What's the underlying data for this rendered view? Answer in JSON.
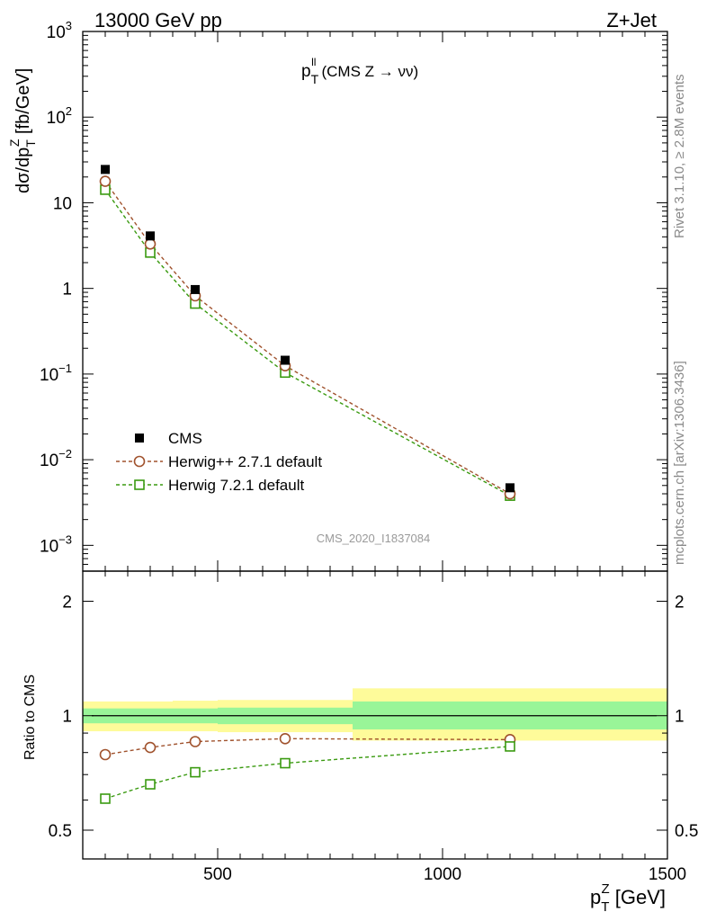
{
  "header": {
    "left": "13000 GeV pp",
    "right": "Z+Jet"
  },
  "side_labels": {
    "rivet": "Rivet 3.1.10, ≥ 2.8M events",
    "mcplots": "mcplots.cern.ch [arXiv:1306.3436]"
  },
  "colors": {
    "data": "#000000",
    "herwigpp": "#a0522d",
    "herwig7": "#3a9a10",
    "band_inner": "#99f598",
    "band_outer": "#fefb9a",
    "side_text": "#8a8a8a"
  },
  "chart_data": [
    {
      "type": "scatter",
      "panel": "main",
      "title_main": "p",
      "title_sup": "ll",
      "title_sub": "T",
      "title_rest": "(CMS Z → νν)",
      "ylabel": "dσ/dp_T^Z [fb/GeV]",
      "ylabel_parts": {
        "a": "dσ/dp",
        "sub": "T",
        "sup": "Z",
        "b": " [fb/GeV]"
      },
      "yscale": "log",
      "ylim": [
        0.0005,
        1000
      ],
      "xlim": [
        200,
        1500
      ],
      "yticks": [
        {
          "value": 1000,
          "base": "10",
          "exp": "3"
        },
        {
          "value": 100,
          "base": "10",
          "exp": "2"
        },
        {
          "value": 10,
          "base": "10",
          "exp": ""
        },
        {
          "value": 1,
          "base": "1",
          "exp": ""
        },
        {
          "value": 0.1,
          "base": "10",
          "exp": "−1"
        },
        {
          "value": 0.01,
          "base": "10",
          "exp": "−2"
        },
        {
          "value": 0.001,
          "base": "10",
          "exp": "−3"
        }
      ],
      "watermark": "CMS_2020_I1837084",
      "legend": {
        "placement": "bottom-left",
        "entries": [
          "CMS",
          "Herwig++ 2.7.1 default",
          "Herwig 7.2.1 default"
        ]
      },
      "series": [
        {
          "name": "CMS",
          "marker": "filled-square",
          "x": [
            250,
            350,
            450,
            650,
            1150
          ],
          "y": [
            24.5,
            4.1,
            0.97,
            0.145,
            0.0047
          ]
        },
        {
          "name": "Herwig++ 2.7.1 default",
          "marker": "open-circle",
          "x": [
            250,
            350,
            450,
            650,
            1150
          ],
          "y": [
            17.8,
            3.3,
            0.82,
            0.125,
            0.004
          ]
        },
        {
          "name": "Herwig 7.2.1 default",
          "marker": "open-square",
          "x": [
            250,
            350,
            450,
            650,
            1150
          ],
          "y": [
            14.2,
            2.62,
            0.665,
            0.104,
            0.0038
          ]
        }
      ]
    },
    {
      "type": "scatter",
      "panel": "ratio",
      "ylabel": "Ratio to CMS",
      "yscale": "log",
      "ylim": [
        0.42,
        2.4
      ],
      "xlim": [
        200,
        1500
      ],
      "xlabel_parts": {
        "a": "p",
        "sub": "T",
        "sup": "Z",
        "b": " [GeV]"
      },
      "xticks": [
        {
          "value": 500,
          "label": "500"
        },
        {
          "value": 1000,
          "label": "1000"
        },
        {
          "value": 1500,
          "label": "1500"
        }
      ],
      "yticks": [
        {
          "value": 0.5,
          "label": "0.5"
        },
        {
          "value": 1,
          "label": "1"
        },
        {
          "value": 2,
          "label": "2"
        }
      ],
      "bands": [
        {
          "x0": 200,
          "x1": 300,
          "inner": [
            0.955,
            1.045
          ],
          "outer": [
            0.91,
            1.09
          ]
        },
        {
          "x0": 300,
          "x1": 400,
          "inner": [
            0.955,
            1.045
          ],
          "outer": [
            0.91,
            1.09
          ]
        },
        {
          "x0": 400,
          "x1": 500,
          "inner": [
            0.955,
            1.045
          ],
          "outer": [
            0.91,
            1.095
          ]
        },
        {
          "x0": 500,
          "x1": 800,
          "inner": [
            0.95,
            1.05
          ],
          "outer": [
            0.905,
            1.1
          ]
        },
        {
          "x0": 800,
          "x1": 1500,
          "inner": [
            0.92,
            1.09
          ],
          "outer": [
            0.86,
            1.18
          ]
        }
      ],
      "series": [
        {
          "name": "Herwig++ 2.7.1 default",
          "marker": "open-circle",
          "x": [
            250,
            350,
            450,
            650,
            1150
          ],
          "y": [
            0.79,
            0.825,
            0.855,
            0.87,
            0.865
          ],
          "err": [
            0.008,
            0.008,
            0.008,
            0.01,
            0.025
          ]
        },
        {
          "name": "Herwig 7.2.1 default",
          "marker": "open-square",
          "x": [
            250,
            350,
            450,
            650,
            1150
          ],
          "y": [
            0.605,
            0.66,
            0.71,
            0.75,
            0.83
          ],
          "err": [
            0.006,
            0.006,
            0.007,
            0.008,
            0.025
          ]
        }
      ]
    }
  ]
}
